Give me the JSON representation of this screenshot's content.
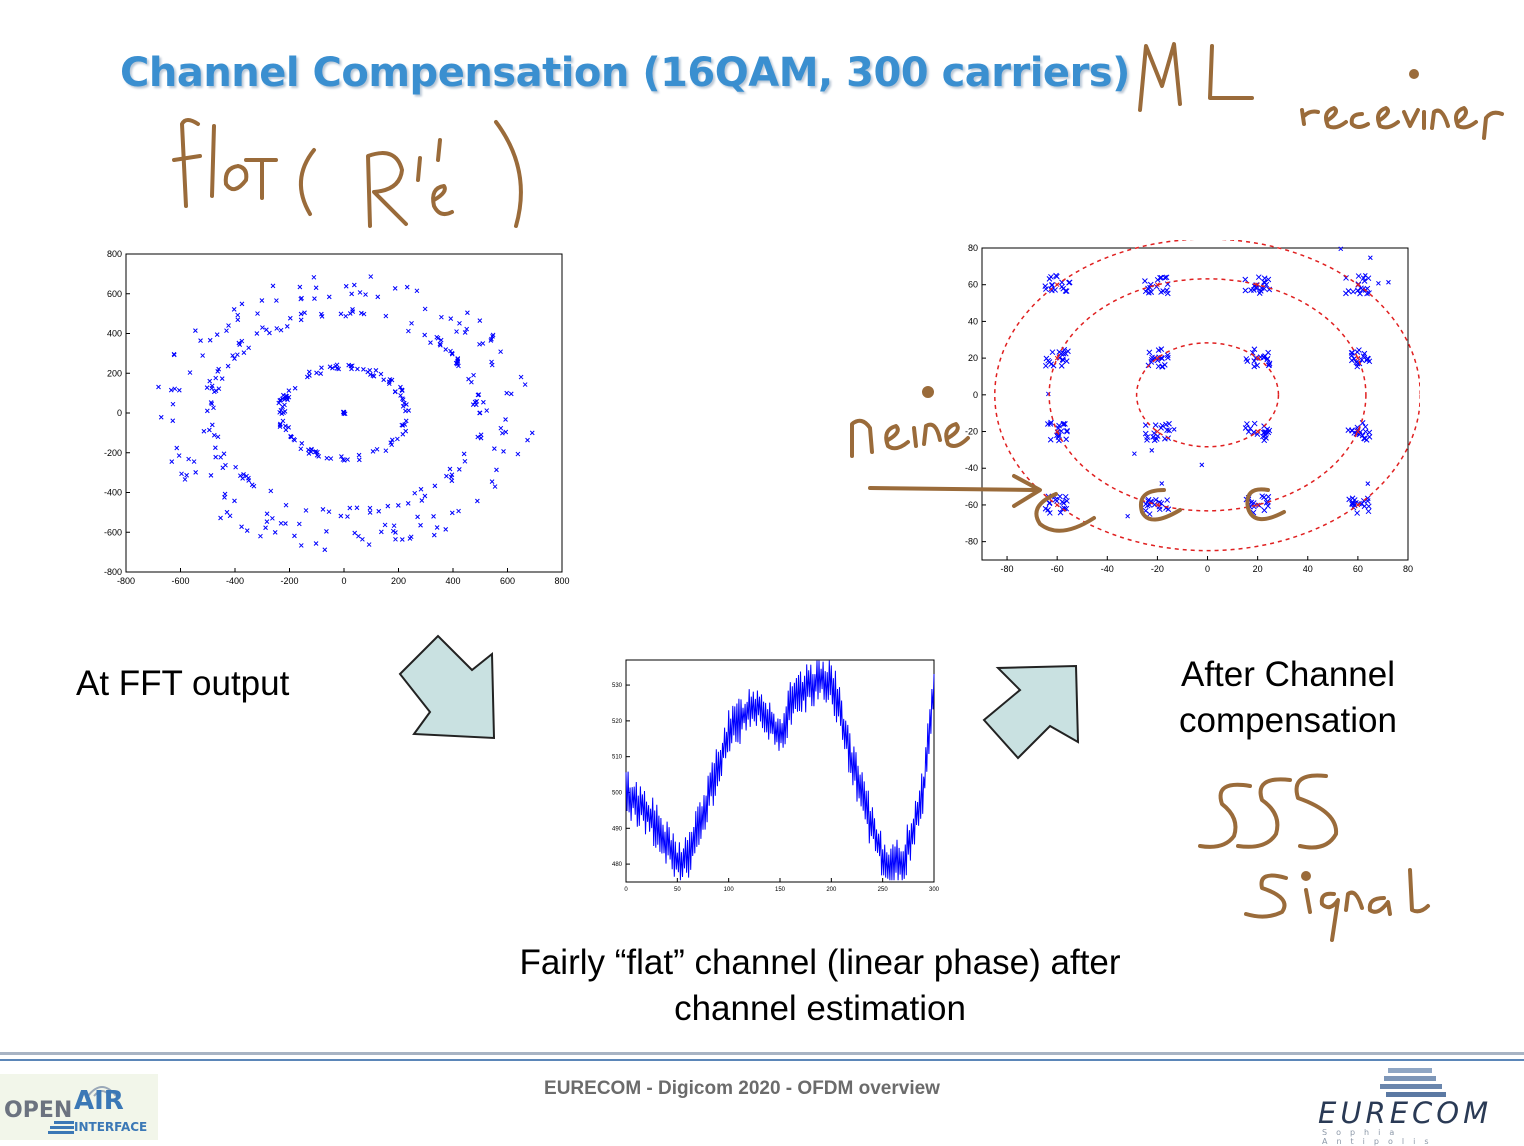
{
  "slide": {
    "title": "Channel Compensation (16QAM, 300 carriers)",
    "caption_fft": "At FFT output",
    "caption_after": [
      "After Channel",
      "compensation"
    ],
    "caption_flat": [
      "Fairly “flat” channel (linear phase) after",
      "channel estimation"
    ],
    "footer": "EURECOM - Digicom 2020 - OFDM overview"
  },
  "logos": {
    "oai": {
      "open": "OPEN",
      "air": "AIR",
      "interface": "INTERFACE"
    },
    "eurecom": {
      "name": "EURECOM",
      "tagline": "Sophia Antipolis"
    }
  },
  "colors": {
    "title": "#3a8fd0",
    "marker": "#0000ff",
    "ink": "#9a6b3a",
    "circles": "#e02020",
    "arrow_fill": "#c9e1e1"
  },
  "handwriting": {
    "ml_receiver": "ML receiver",
    "flat_r": "flat ( R )",
    "noise": "noise",
    "sss_signal": "SSS Signal"
  },
  "chart_data": [
    {
      "type": "scatter",
      "title": "",
      "xlim": [
        -800,
        800
      ],
      "ylim": [
        -800,
        800
      ],
      "xticks": [
        -800,
        -600,
        -400,
        -200,
        0,
        200,
        400,
        600,
        800
      ],
      "yticks": [
        800,
        600,
        400,
        200,
        0,
        -200,
        -400,
        -600,
        -800
      ],
      "rings": [
        {
          "radius": 230,
          "spread": 15
        },
        {
          "radius": 500,
          "spread": 25
        },
        {
          "radius": 640,
          "spread": 60
        }
      ],
      "center_cluster": [
        0,
        0
      ]
    },
    {
      "type": "line",
      "title": "",
      "xlim": [
        0,
        300
      ],
      "ylim": [
        475,
        537
      ],
      "xticks": [
        0,
        50,
        100,
        150,
        200,
        250,
        300
      ],
      "yticks": [
        530,
        520,
        510,
        500,
        490,
        480
      ],
      "x": [
        0,
        10,
        20,
        30,
        40,
        50,
        60,
        70,
        80,
        90,
        100,
        110,
        120,
        130,
        140,
        150,
        160,
        170,
        180,
        190,
        200,
        210,
        220,
        230,
        240,
        250,
        260,
        270,
        280,
        290,
        300
      ],
      "y": [
        500,
        497,
        495,
        490,
        485,
        480,
        482,
        490,
        498,
        508,
        516,
        520,
        523,
        524,
        520,
        515,
        524,
        527,
        530,
        532,
        531,
        521,
        508,
        499,
        490,
        482,
        479,
        481,
        490,
        502,
        530
      ]
    },
    {
      "type": "scatter",
      "title": "",
      "xlim": [
        -90,
        80
      ],
      "ylim": [
        -90,
        80
      ],
      "xticks": [
        -80,
        -60,
        -40,
        -20,
        0,
        20,
        40,
        60,
        80
      ],
      "yticks": [
        80,
        60,
        40,
        20,
        0,
        -20,
        -40,
        -60,
        -80
      ],
      "constellation_points": [
        [
          -60,
          60
        ],
        [
          -20,
          60
        ],
        [
          20,
          60
        ],
        [
          60,
          60
        ],
        [
          -60,
          20
        ],
        [
          -20,
          20
        ],
        [
          20,
          20
        ],
        [
          60,
          20
        ],
        [
          -60,
          -20
        ],
        [
          -20,
          -20
        ],
        [
          20,
          -20
        ],
        [
          60,
          -20
        ],
        [
          -60,
          -60
        ],
        [
          -20,
          -60
        ],
        [
          20,
          -60
        ],
        [
          60,
          -60
        ]
      ],
      "circle_radii": [
        28.3,
        63.2,
        84.9
      ]
    }
  ]
}
